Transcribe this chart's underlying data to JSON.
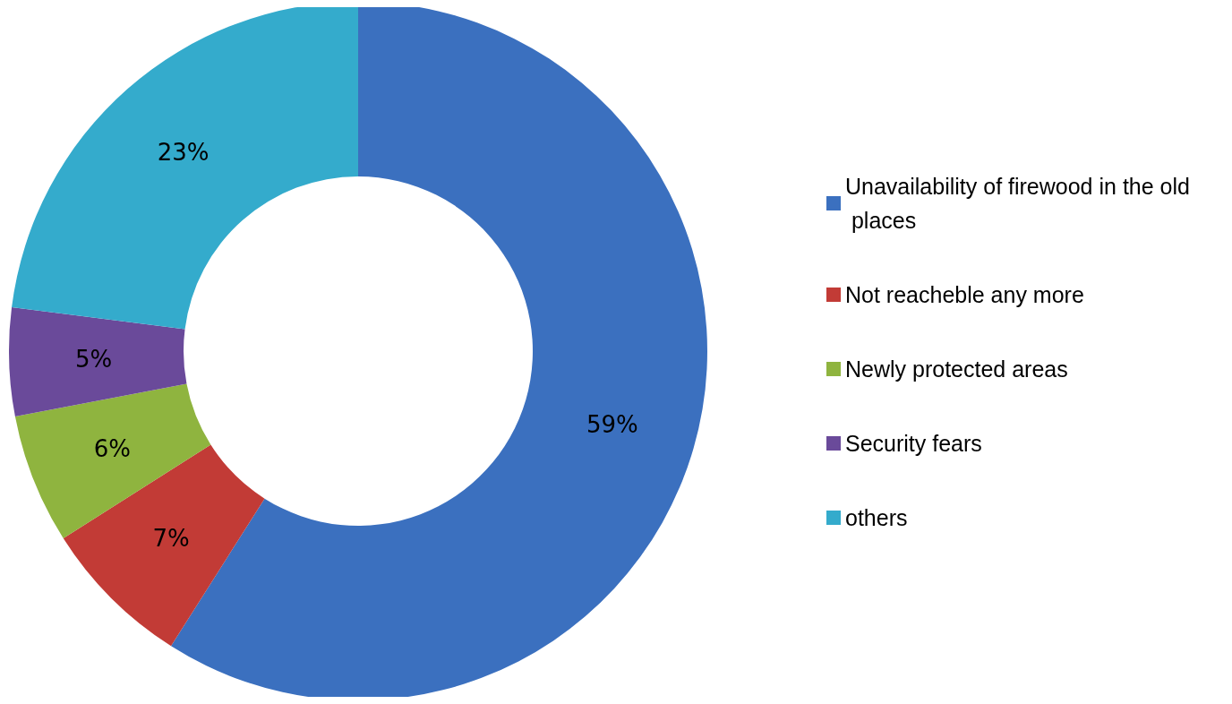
{
  "chart_data": {
    "type": "donut",
    "categories": [
      "Unavailability of firewood in the old places",
      "Not reacheble any more",
      "Newly protected areas",
      "Security fears",
      "others"
    ],
    "values": [
      59,
      7,
      6,
      5,
      23
    ],
    "colors": [
      "#3b70bf",
      "#c23b36",
      "#8fb43f",
      "#6a4a9a",
      "#34abcc"
    ],
    "value_labels": [
      "59%",
      "7%",
      "6%",
      "5%",
      "23%"
    ],
    "legend": "right"
  }
}
